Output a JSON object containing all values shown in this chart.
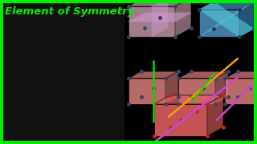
{
  "bg_color": "#000000",
  "border_color": "#00ee00",
  "border_width": 3,
  "title_text": "Element of Symmetry",
  "title_color": "#00ee00",
  "title_fontsize": 9.5,
  "person_bg": "#1a1a1a",
  "cube_face_salmon": "#f08888",
  "cube_face_pink": "#d8a0b0",
  "cube_face_blue": "#5599cc",
  "cube_dot_color": "#334466",
  "cube_dot_red": "#cc2222",
  "cube_dot_size": 2.5,
  "green_color": "#00dd00",
  "orange_color": "#ff9900",
  "purple_color": "#cc44cc",
  "edge_lw": 0.6
}
